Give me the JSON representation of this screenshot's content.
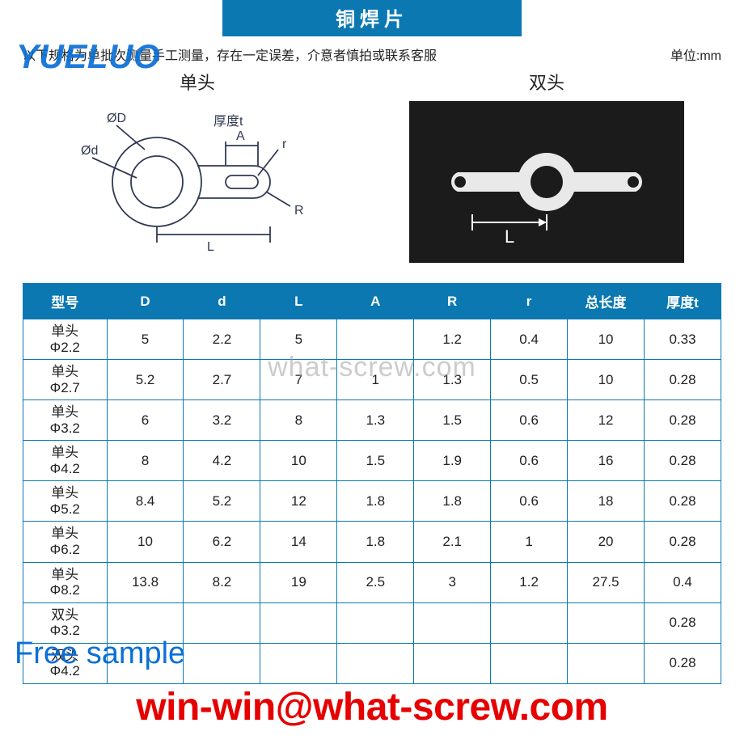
{
  "title": "铜焊片",
  "note": "以下规格为单批次测量手工测量，存在一定误差，介意者慎拍或联系客服",
  "unit_label": "单位:mm",
  "diagrams": {
    "left_label": "单头",
    "right_label": "双头",
    "dim_L": "L",
    "dim_D": "ØD",
    "dim_d": "Ød",
    "dim_A": "A",
    "dim_R": "R",
    "dim_r": "r",
    "dim_t": "厚度t"
  },
  "table": {
    "columns": [
      "型号",
      "D",
      "d",
      "L",
      "A",
      "R",
      "r",
      "总长度",
      "厚度t"
    ],
    "col_widths_pct": [
      12,
      11,
      11,
      11,
      11,
      11,
      11,
      11,
      11
    ],
    "header_bg": "#0b78b2",
    "header_text": "#ffffff",
    "border_color": "#0b78b2",
    "cell_text": "#222222",
    "rows": [
      [
        "单头\nΦ2.2",
        "5",
        "2.2",
        "5",
        "",
        "1.2",
        "0.4",
        "10",
        "0.33"
      ],
      [
        "单头\nΦ2.7",
        "5.2",
        "2.7",
        "7",
        "1",
        "1.3",
        "0.5",
        "10",
        "0.28"
      ],
      [
        "单头\nΦ3.2",
        "6",
        "3.2",
        "8",
        "1.3",
        "1.5",
        "0.6",
        "12",
        "0.28"
      ],
      [
        "单头\nΦ4.2",
        "8",
        "4.2",
        "10",
        "1.5",
        "1.9",
        "0.6",
        "16",
        "0.28"
      ],
      [
        "单头\nΦ5.2",
        "8.4",
        "5.2",
        "12",
        "1.8",
        "1.8",
        "0.6",
        "18",
        "0.28"
      ],
      [
        "单头\nΦ6.2",
        "10",
        "6.2",
        "14",
        "1.8",
        "2.1",
        "1",
        "20",
        "0.28"
      ],
      [
        "单头\nΦ8.2",
        "13.8",
        "8.2",
        "19",
        "2.5",
        "3",
        "1.2",
        "27.5",
        "0.4"
      ],
      [
        "双头\nΦ3.2",
        "",
        "",
        "",
        "",
        "",
        "",
        "",
        "0.28"
      ],
      [
        "双头\nΦ4.2",
        "",
        "",
        "",
        "",
        "",
        "",
        "",
        "0.28"
      ]
    ]
  },
  "watermarks": {
    "logo": "YUELUO",
    "center": "what-screw.com",
    "free_sample": "Free sample",
    "email": "win-win@what-screw.com"
  },
  "colors": {
    "brand_blue": "#0b78b2",
    "logo_blue": "#0a6fd6",
    "email_red": "#e60000",
    "photo_bg": "#1b1b1b",
    "wm_gray": "#9a9a9a"
  }
}
